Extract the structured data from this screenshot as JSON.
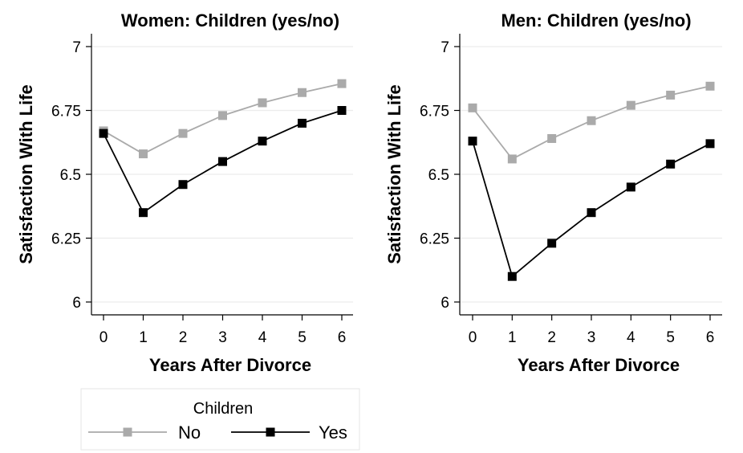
{
  "chart_data": [
    {
      "type": "line",
      "title": "Women: Children (yes/no)",
      "xlabel": "Years After Divorce",
      "ylabel": "Satisfaction With Life",
      "x": [
        0,
        1,
        2,
        3,
        4,
        5,
        6
      ],
      "xticks": [
        "0",
        "1",
        "2",
        "3",
        "4",
        "5",
        "6"
      ],
      "yticks": [
        "6",
        "6.25",
        "6.5",
        "6.75",
        "7"
      ],
      "ylim": [
        6,
        7
      ],
      "grid": true,
      "series": [
        {
          "name": "No",
          "color": "#aaaaaa",
          "values": [
            6.67,
            6.58,
            6.66,
            6.73,
            6.78,
            6.82,
            6.855
          ]
        },
        {
          "name": "Yes",
          "color": "#000000",
          "values": [
            6.66,
            6.35,
            6.46,
            6.55,
            6.63,
            6.7,
            6.75
          ]
        }
      ]
    },
    {
      "type": "line",
      "title": "Men: Children (yes/no)",
      "xlabel": "Years After Divorce",
      "ylabel": "Satisfaction With Life",
      "x": [
        0,
        1,
        2,
        3,
        4,
        5,
        6
      ],
      "xticks": [
        "0",
        "1",
        "2",
        "3",
        "4",
        "5",
        "6"
      ],
      "yticks": [
        "6",
        "6.25",
        "6.5",
        "6.75",
        "7"
      ],
      "ylim": [
        6,
        7
      ],
      "grid": true,
      "series": [
        {
          "name": "No",
          "color": "#aaaaaa",
          "values": [
            6.76,
            6.56,
            6.64,
            6.71,
            6.77,
            6.81,
            6.845
          ]
        },
        {
          "name": "Yes",
          "color": "#000000",
          "values": [
            6.63,
            6.1,
            6.23,
            6.35,
            6.45,
            6.54,
            6.62
          ]
        }
      ]
    }
  ],
  "legend": {
    "title": "Children",
    "placement": "bottom-left",
    "items": [
      {
        "label": "No",
        "color": "#aaaaaa"
      },
      {
        "label": "Yes",
        "color": "#000000"
      }
    ]
  }
}
